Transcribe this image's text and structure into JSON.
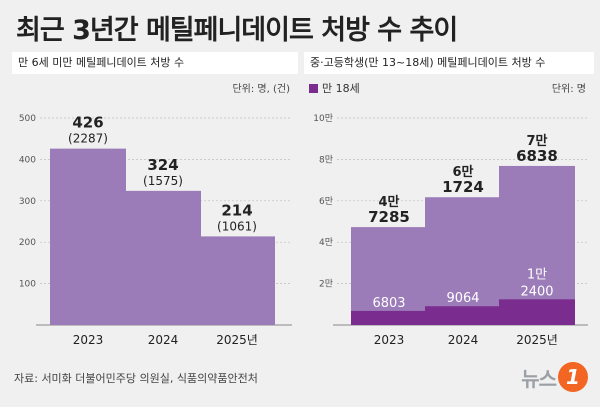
{
  "title": "최근 3년간 메틸페니데이트 처방 수 추이",
  "source": "자료: 서미화 더불어민주당 의원실, 식품의약품안전처",
  "logo": {
    "word": "뉴스",
    "badge": "1"
  },
  "colors": {
    "bar": "#9b7bb8",
    "bar_dark": "#7b2c8f",
    "panel": "#ffffff"
  },
  "chart_data": [
    {
      "type": "bar",
      "panel_title": "만 6세 미만 메틸페니데이트 처방 수",
      "unit": "단위: 명, (건)",
      "categories": [
        "2023",
        "2024",
        "2025년"
      ],
      "values": [
        426,
        324,
        214
      ],
      "value_labels": [
        "426",
        "324",
        "214"
      ],
      "sub_labels": [
        "(2287)",
        "(1575)",
        "(1061)"
      ],
      "ylim": [
        0,
        500
      ],
      "yticks": [
        0,
        100,
        200,
        300,
        400,
        500
      ],
      "ytick_labels": [
        "",
        "100",
        "200",
        "300",
        "400",
        "500"
      ]
    },
    {
      "type": "bar",
      "stacked": true,
      "panel_title": "중·고등학생(만 13~18세) 메틸페니데이트 처방 수",
      "unit": "단위: 명",
      "legend": "만 18세",
      "categories": [
        "2023",
        "2024",
        "2025년"
      ],
      "series": [
        {
          "name": "만 18세",
          "values": [
            6803,
            9064,
            12400
          ],
          "labels": [
            [
              "6803"
            ],
            [
              "9064"
            ],
            [
              "1만",
              "2400"
            ]
          ]
        },
        {
          "values": [
            47285,
            61724,
            76838
          ]
        }
      ],
      "total_labels": [
        [
          "4만",
          "7285"
        ],
        [
          "6만",
          "1724"
        ],
        [
          "7만",
          "6838"
        ]
      ],
      "ylim": [
        0,
        100000
      ],
      "yticks": [
        0,
        20000,
        40000,
        60000,
        80000,
        100000
      ],
      "ytick_labels": [
        "",
        "2만",
        "4만",
        "6만",
        "8만",
        "10만"
      ]
    }
  ]
}
